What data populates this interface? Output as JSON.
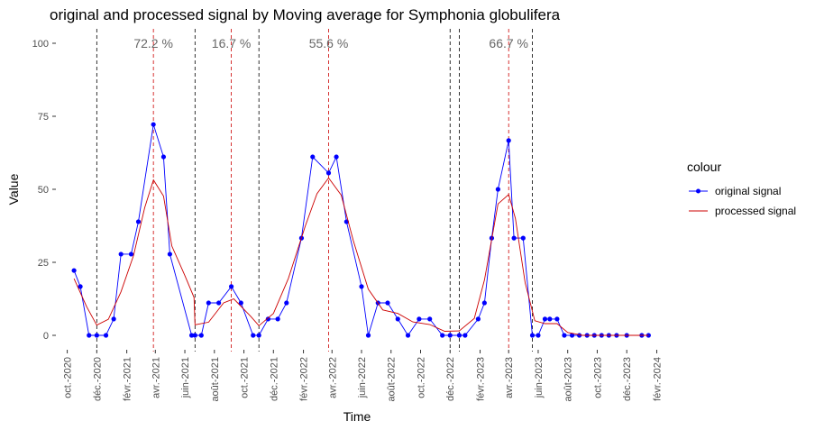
{
  "chart_data": {
    "type": "line",
    "title": "original and processed signal by Moving average for Symphonia globulifera",
    "xlabel": "Time",
    "ylabel": "Value",
    "ylim": [
      0,
      100
    ],
    "y_ticks": [
      0,
      25,
      50,
      75,
      100
    ],
    "x_range": [
      "2020-09-15",
      "2024-02-15"
    ],
    "x_ticks": [
      {
        "date": "2020-10-01",
        "label": "oct.-2020"
      },
      {
        "date": "2020-12-01",
        "label": "déc.-2020"
      },
      {
        "date": "2021-02-01",
        "label": "févr.-2021"
      },
      {
        "date": "2021-04-01",
        "label": "avr.-2021"
      },
      {
        "date": "2021-06-01",
        "label": "juin-2021"
      },
      {
        "date": "2021-08-01",
        "label": "août-2021"
      },
      {
        "date": "2021-10-01",
        "label": "oct.-2021"
      },
      {
        "date": "2021-12-01",
        "label": "déc.-2021"
      },
      {
        "date": "2022-02-01",
        "label": "févr.-2022"
      },
      {
        "date": "2022-04-01",
        "label": "avr.-2022"
      },
      {
        "date": "2022-06-01",
        "label": "juin-2022"
      },
      {
        "date": "2022-08-01",
        "label": "août-2022"
      },
      {
        "date": "2022-10-01",
        "label": "oct.-2022"
      },
      {
        "date": "2022-12-01",
        "label": "déc.-2022"
      },
      {
        "date": "2023-02-01",
        "label": "févr.-2023"
      },
      {
        "date": "2023-04-01",
        "label": "avr.-2023"
      },
      {
        "date": "2023-06-01",
        "label": "juin-2023"
      },
      {
        "date": "2023-08-01",
        "label": "août-2023"
      },
      {
        "date": "2023-10-01",
        "label": "oct.-2023"
      },
      {
        "date": "2023-12-01",
        "label": "déc.-2023"
      },
      {
        "date": "2024-02-01",
        "label": "févr.-2024"
      }
    ],
    "series": [
      {
        "name": "original signal",
        "color": "#0000ff",
        "marker": "point",
        "points": [
          [
            "2020-10-15",
            22.2
          ],
          [
            "2020-10-28",
            16.7
          ],
          [
            "2020-11-15",
            0
          ],
          [
            "2020-12-01",
            0
          ],
          [
            "2020-12-20",
            0
          ],
          [
            "2021-01-05",
            5.6
          ],
          [
            "2021-01-20",
            27.8
          ],
          [
            "2021-02-10",
            27.8
          ],
          [
            "2021-02-25",
            38.9
          ],
          [
            "2021-03-28",
            72.2
          ],
          [
            "2021-04-18",
            61.1
          ],
          [
            "2021-05-01",
            27.8
          ],
          [
            "2021-06-15",
            0
          ],
          [
            "2021-06-22",
            0
          ],
          [
            "2021-07-05",
            0
          ],
          [
            "2021-07-20",
            11.1
          ],
          [
            "2021-08-10",
            11.1
          ],
          [
            "2021-09-05",
            16.7
          ],
          [
            "2021-09-25",
            11.1
          ],
          [
            "2021-10-20",
            0
          ],
          [
            "2021-11-01",
            0
          ],
          [
            "2021-11-20",
            5.6
          ],
          [
            "2021-12-10",
            5.6
          ],
          [
            "2021-12-28",
            11.1
          ],
          [
            "2022-01-28",
            33.3
          ],
          [
            "2022-02-20",
            61.1
          ],
          [
            "2022-03-25",
            55.6
          ],
          [
            "2022-04-10",
            61.1
          ],
          [
            "2022-05-01",
            38.9
          ],
          [
            "2022-06-01",
            16.7
          ],
          [
            "2022-06-15",
            0
          ],
          [
            "2022-07-05",
            11.1
          ],
          [
            "2022-07-25",
            11.1
          ],
          [
            "2022-08-15",
            5.6
          ],
          [
            "2022-09-05",
            0
          ],
          [
            "2022-09-28",
            5.6
          ],
          [
            "2022-10-20",
            5.6
          ],
          [
            "2022-11-15",
            0
          ],
          [
            "2022-12-01",
            0
          ],
          [
            "2022-12-20",
            0
          ],
          [
            "2023-01-01",
            0
          ],
          [
            "2023-01-28",
            5.6
          ],
          [
            "2023-02-10",
            11.1
          ],
          [
            "2023-02-25",
            33.3
          ],
          [
            "2023-03-10",
            50
          ],
          [
            "2023-04-01",
            66.7
          ],
          [
            "2023-04-12",
            33.3
          ],
          [
            "2023-05-01",
            33.3
          ],
          [
            "2023-05-20",
            0
          ],
          [
            "2023-06-01",
            0
          ],
          [
            "2023-06-15",
            5.6
          ],
          [
            "2023-06-25",
            5.6
          ],
          [
            "2023-07-10",
            5.6
          ],
          [
            "2023-07-25",
            0
          ],
          [
            "2023-08-10",
            0
          ],
          [
            "2023-08-25",
            0
          ],
          [
            "2023-09-10",
            0
          ],
          [
            "2023-09-25",
            0
          ],
          [
            "2023-10-10",
            0
          ],
          [
            "2023-10-25",
            0
          ],
          [
            "2023-11-10",
            0
          ],
          [
            "2023-12-01",
            0
          ],
          [
            "2024-01-01",
            0
          ],
          [
            "2024-01-15",
            0
          ]
        ]
      },
      {
        "name": "processed signal",
        "color": "#cc0000",
        "marker": "none",
        "points": [
          [
            "2020-10-15",
            19.4
          ],
          [
            "2020-11-10",
            9.8
          ],
          [
            "2020-12-01",
            3.5
          ],
          [
            "2020-12-25",
            5.5
          ],
          [
            "2021-01-20",
            14.9
          ],
          [
            "2021-02-15",
            27.3
          ],
          [
            "2021-03-10",
            43.7
          ],
          [
            "2021-03-28",
            53.2
          ],
          [
            "2021-04-18",
            47.7
          ],
          [
            "2021-05-05",
            30.6
          ],
          [
            "2021-06-01",
            20.5
          ],
          [
            "2021-06-20",
            13.0
          ],
          [
            "2021-06-22",
            3.6
          ],
          [
            "2021-07-20",
            4.5
          ],
          [
            "2021-08-20",
            11.1
          ],
          [
            "2021-09-10",
            12.5
          ],
          [
            "2021-10-15",
            6.5
          ],
          [
            "2021-11-01",
            3.3
          ],
          [
            "2021-12-01",
            7.5
          ],
          [
            "2022-01-01",
            19.5
          ],
          [
            "2022-02-05",
            37.5
          ],
          [
            "2022-03-01",
            48.5
          ],
          [
            "2022-03-25",
            53.9
          ],
          [
            "2022-04-20",
            48.0
          ],
          [
            "2022-05-15",
            32.4
          ],
          [
            "2022-06-15",
            15.8
          ],
          [
            "2022-07-15",
            8.7
          ],
          [
            "2022-08-15",
            7.5
          ],
          [
            "2022-09-15",
            4.6
          ],
          [
            "2022-10-20",
            3.7
          ],
          [
            "2022-11-20",
            1.4
          ],
          [
            "2022-12-20",
            1.5
          ],
          [
            "2023-01-20",
            5.8
          ],
          [
            "2023-02-10",
            19.0
          ],
          [
            "2023-03-10",
            45.0
          ],
          [
            "2023-04-01",
            48.2
          ],
          [
            "2023-04-15",
            40.0
          ],
          [
            "2023-05-05",
            18.0
          ],
          [
            "2023-05-25",
            5.0
          ],
          [
            "2023-06-15",
            4.0
          ],
          [
            "2023-07-10",
            4.0
          ],
          [
            "2023-08-01",
            1.0
          ],
          [
            "2023-09-01",
            0
          ],
          [
            "2024-01-15",
            0
          ]
        ]
      }
    ],
    "vlines": [
      {
        "date": "2020-12-01",
        "color": "#000000",
        "style": "dashed"
      },
      {
        "date": "2021-03-28",
        "color": "#cc0000",
        "style": "dashed"
      },
      {
        "date": "2021-06-22",
        "color": "#000000",
        "style": "dashed"
      },
      {
        "date": "2021-09-05",
        "color": "#cc0000",
        "style": "dashed"
      },
      {
        "date": "2021-11-01",
        "color": "#000000",
        "style": "dashed"
      },
      {
        "date": "2022-03-25",
        "color": "#cc0000",
        "style": "dashed"
      },
      {
        "date": "2022-12-01",
        "color": "#000000",
        "style": "dashed"
      },
      {
        "date": "2022-12-20",
        "color": "#000000",
        "style": "dashed"
      },
      {
        "date": "2023-04-01",
        "color": "#cc0000",
        "style": "dashed"
      },
      {
        "date": "2023-05-20",
        "color": "#000000",
        "style": "dashed"
      }
    ],
    "annotations": [
      {
        "date": "2021-03-28",
        "y": 100,
        "text": "72.2 %"
      },
      {
        "date": "2021-09-05",
        "y": 100,
        "text": "16.7 %"
      },
      {
        "date": "2022-03-25",
        "y": 100,
        "text": "55.6 %"
      },
      {
        "date": "2023-04-01",
        "y": 100,
        "text": "66.7 %"
      }
    ],
    "legend": {
      "title": "colour",
      "position": "right",
      "items": [
        "original signal",
        "processed signal"
      ]
    },
    "grid": false
  }
}
